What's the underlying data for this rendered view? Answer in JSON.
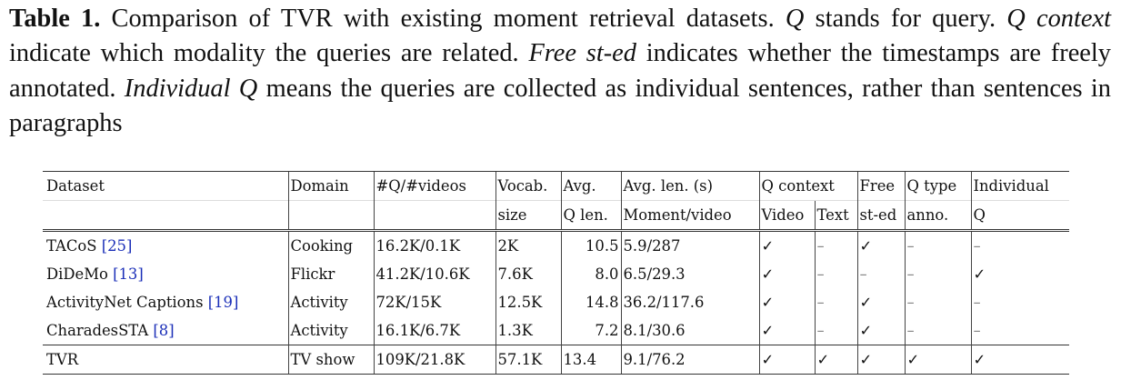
{
  "caption": {
    "label": "Table 1.",
    "s1": "Comparison of TVR with existing moment retrieval datasets.",
    "q": "Q",
    "s2": "stands for query.",
    "qcontext": "Q context",
    "s3": "indicate which modality the queries are related.",
    "free": "Free st-ed",
    "s4": "indicates whether the timestamps are freely annotated.",
    "indiv": "Individual Q",
    "s5": "means the queries are collected as individual sentences, rather than sentences in paragraphs"
  },
  "header1": [
    "Dataset",
    "Domain",
    "#Q/#videos",
    "Vocab.",
    "Avg.",
    "Avg. len. (s)",
    "Q context",
    "",
    "Free",
    "Q type",
    "Individual"
  ],
  "header2": [
    "",
    "",
    "",
    "size",
    "Q len.",
    "Moment/video",
    "Video",
    "Text",
    "st-ed",
    "anno.",
    "Q"
  ],
  "rows": [
    {
      "name": "TACoS",
      "ref": "[25]",
      "domain": "Cooking",
      "qv": "16.2K/0.1K",
      "vocab": "2K",
      "qlen": "10.5",
      "len": "5.9/287",
      "video": "✓",
      "text": "–",
      "free": "✓",
      "qtype": "–",
      "indiv": "–"
    },
    {
      "name": "DiDeMo",
      "ref": "[13]",
      "domain": "Flickr",
      "qv": "41.2K/10.6K",
      "vocab": "7.6K",
      "qlen": "8.0",
      "len": "6.5/29.3",
      "video": "✓",
      "text": "–",
      "free": "–",
      "qtype": "–",
      "indiv": "✓"
    },
    {
      "name": "ActivityNet Captions",
      "ref": "[19]",
      "domain": "Activity",
      "qv": "72K/15K",
      "vocab": "12.5K",
      "qlen": "14.8",
      "len": "36.2/117.6",
      "video": "✓",
      "text": "–",
      "free": "✓",
      "qtype": "–",
      "indiv": "–"
    },
    {
      "name": "CharadesSTA",
      "ref": "[8]",
      "domain": "Activity",
      "qv": "16.1K/6.7K",
      "vocab": "1.3K",
      "qlen": "7.2",
      "len": "8.1/30.6",
      "video": "✓",
      "text": "–",
      "free": "✓",
      "qtype": "–",
      "indiv": "–"
    },
    {
      "name": "TVR",
      "ref": "",
      "domain": "TV show",
      "qv": "109K/21.8K",
      "vocab": "57.1K",
      "qlen": "13.4",
      "len": "9.1/76.2",
      "video": "✓",
      "text": "✓",
      "free": "✓",
      "qtype": "✓",
      "indiv": "✓"
    }
  ],
  "colors": {
    "ref": "#1b2fb8"
  }
}
